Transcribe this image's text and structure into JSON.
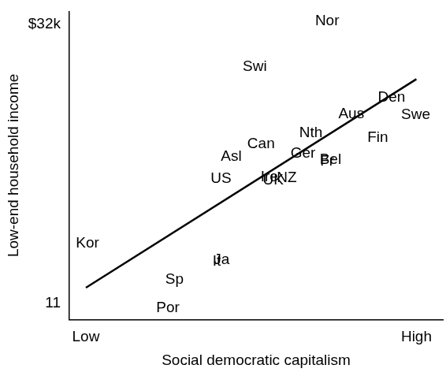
{
  "chart_data": {
    "type": "scatter",
    "x_label": "Social democratic capitalism",
    "y_label": "Low-end household income",
    "labels": [
      "Nor",
      "Swi",
      "Den",
      "Aus",
      "Swe",
      "Nth",
      "Fin",
      "Can",
      "Asl",
      "Ger",
      "Bel",
      "Fr",
      "Ire",
      "NZ",
      "UK",
      "US",
      "Kor",
      "Ja",
      "It",
      "Sp",
      "Por"
    ],
    "x": [
      7.3,
      5.11,
      9.25,
      8.03,
      9.98,
      6.81,
      8.83,
      5.3,
      4.4,
      6.57,
      7.4,
      7.3,
      5.55,
      6.08,
      5.67,
      4.09,
      0.05,
      4.11,
      3.96,
      2.68,
      2.48
    ],
    "values": [
      32.24,
      28.81,
      26.5,
      25.26,
      25.2,
      23.84,
      23.49,
      23.01,
      22.07,
      22.3,
      21.83,
      21.71,
      20.53,
      20.47,
      20.29,
      20.41,
      15.56,
      14.26,
      14.14,
      12.78,
      10.64
    ],
    "color": "#000000",
    "marker": "text",
    "xlim": [
      -0.5,
      10.8
    ],
    "xticks": [
      {
        "value": 0,
        "label": "Low"
      },
      {
        "value": 10,
        "label": "High"
      }
    ],
    "ylim": [
      9.8,
      33
    ],
    "yticks": [
      11,
      {
        "value": 32,
        "label": "$32k"
      }
    ],
    "grid": false,
    "fit_line": {
      "x": [
        0,
        10
      ],
      "values": [
        12.2,
        27.9
      ],
      "color": "#000000",
      "line_style": "solid"
    }
  }
}
